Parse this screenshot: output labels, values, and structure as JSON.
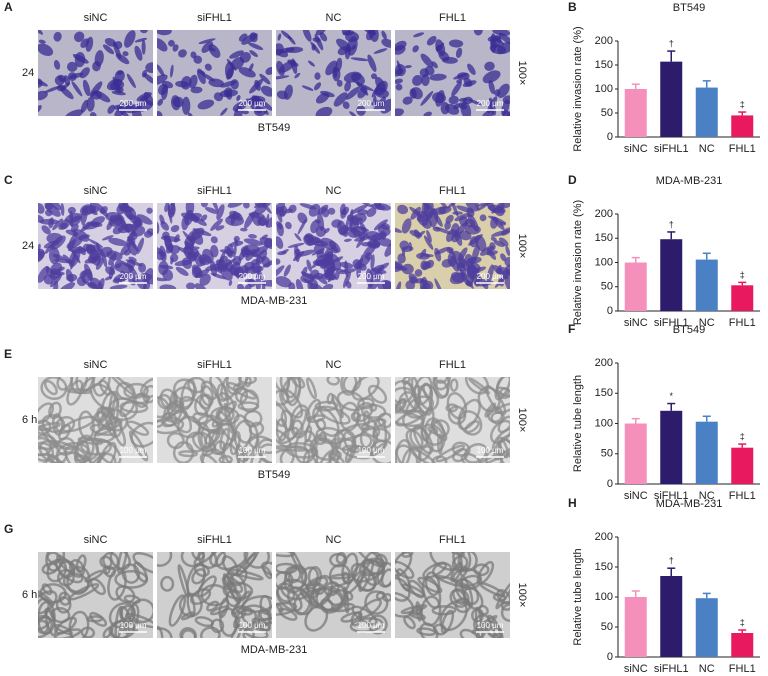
{
  "panels": [
    {
      "letter": "A",
      "time": "24 h",
      "conditions": [
        "siNC",
        "siFHL1",
        "NC",
        "FHL1"
      ],
      "cell_line": "BT549",
      "magnification": "100×",
      "scale_bar": "200 μm"
    },
    {
      "letter": "C",
      "time": "24 h",
      "conditions": [
        "siNC",
        "siFHL1",
        "NC",
        "FHL1"
      ],
      "cell_line": "MDA-MB-231",
      "magnification": "100×",
      "scale_bar": "200 μm"
    },
    {
      "letter": "E",
      "time": "6 h",
      "conditions": [
        "siNC",
        "siFHL1",
        "NC",
        "FHL1"
      ],
      "cell_line": "BT549",
      "magnification": "100×",
      "scale_bar": "100 μm"
    },
    {
      "letter": "G",
      "time": "6 h",
      "conditions": [
        "siNC",
        "siFHL1",
        "NC",
        "FHL1"
      ],
      "cell_line": "MDA-MB-231",
      "magnification": "100×",
      "scale_bar": "100 μm"
    }
  ],
  "chart_data": [
    {
      "type": "bar",
      "letter": "B",
      "title": "BT549",
      "y_label": "Relative invasion rate (%)",
      "categories": [
        "siNC",
        "siFHL1",
        "NC",
        "FHL1"
      ],
      "values": [
        100,
        157,
        103,
        45
      ],
      "errors": [
        10,
        22,
        14,
        7
      ],
      "markers": [
        null,
        "†",
        null,
        "‡"
      ],
      "colors": [
        "#f490bb",
        "#2d1b6b",
        "#4a80c4",
        "#e8195f"
      ],
      "ylim": [
        0,
        200
      ],
      "yticks": [
        0,
        50,
        100,
        150,
        200
      ]
    },
    {
      "type": "bar",
      "letter": "D",
      "title": "MDA-MB-231",
      "y_label": "Relative invasion rate (%)",
      "categories": [
        "siNC",
        "siFHL1",
        "NC",
        "FHL1"
      ],
      "values": [
        100,
        148,
        106,
        53
      ],
      "errors": [
        10,
        15,
        13,
        6
      ],
      "markers": [
        null,
        "†",
        null,
        "‡"
      ],
      "colors": [
        "#f490bb",
        "#2d1b6b",
        "#4a80c4",
        "#e8195f"
      ],
      "ylim": [
        0,
        200
      ],
      "yticks": [
        0,
        50,
        100,
        150,
        200
      ]
    },
    {
      "type": "bar",
      "letter": "F",
      "title": "BT549",
      "y_label": "Relative tube length",
      "categories": [
        "siNC",
        "siFHL1",
        "NC",
        "FHL1"
      ],
      "values": [
        100,
        121,
        103,
        60
      ],
      "errors": [
        8,
        12,
        9,
        6
      ],
      "markers": [
        null,
        "*",
        null,
        "‡"
      ],
      "colors": [
        "#f490bb",
        "#2d1b6b",
        "#4a80c4",
        "#e8195f"
      ],
      "ylim": [
        0,
        200
      ],
      "yticks": [
        0,
        50,
        100,
        150,
        200
      ]
    },
    {
      "type": "bar",
      "letter": "H",
      "title": "MDA-MB-231",
      "y_label": "Relative tube length",
      "categories": [
        "siNC",
        "siFHL1",
        "NC",
        "FHL1"
      ],
      "values": [
        100,
        135,
        98,
        40
      ],
      "errors": [
        10,
        13,
        8,
        5
      ],
      "markers": [
        null,
        "†",
        null,
        "‡"
      ],
      "colors": [
        "#f490bb",
        "#2d1b6b",
        "#4a80c4",
        "#e8195f"
      ],
      "ylim": [
        0,
        200
      ],
      "yticks": [
        0,
        50,
        100,
        150,
        200
      ]
    }
  ]
}
